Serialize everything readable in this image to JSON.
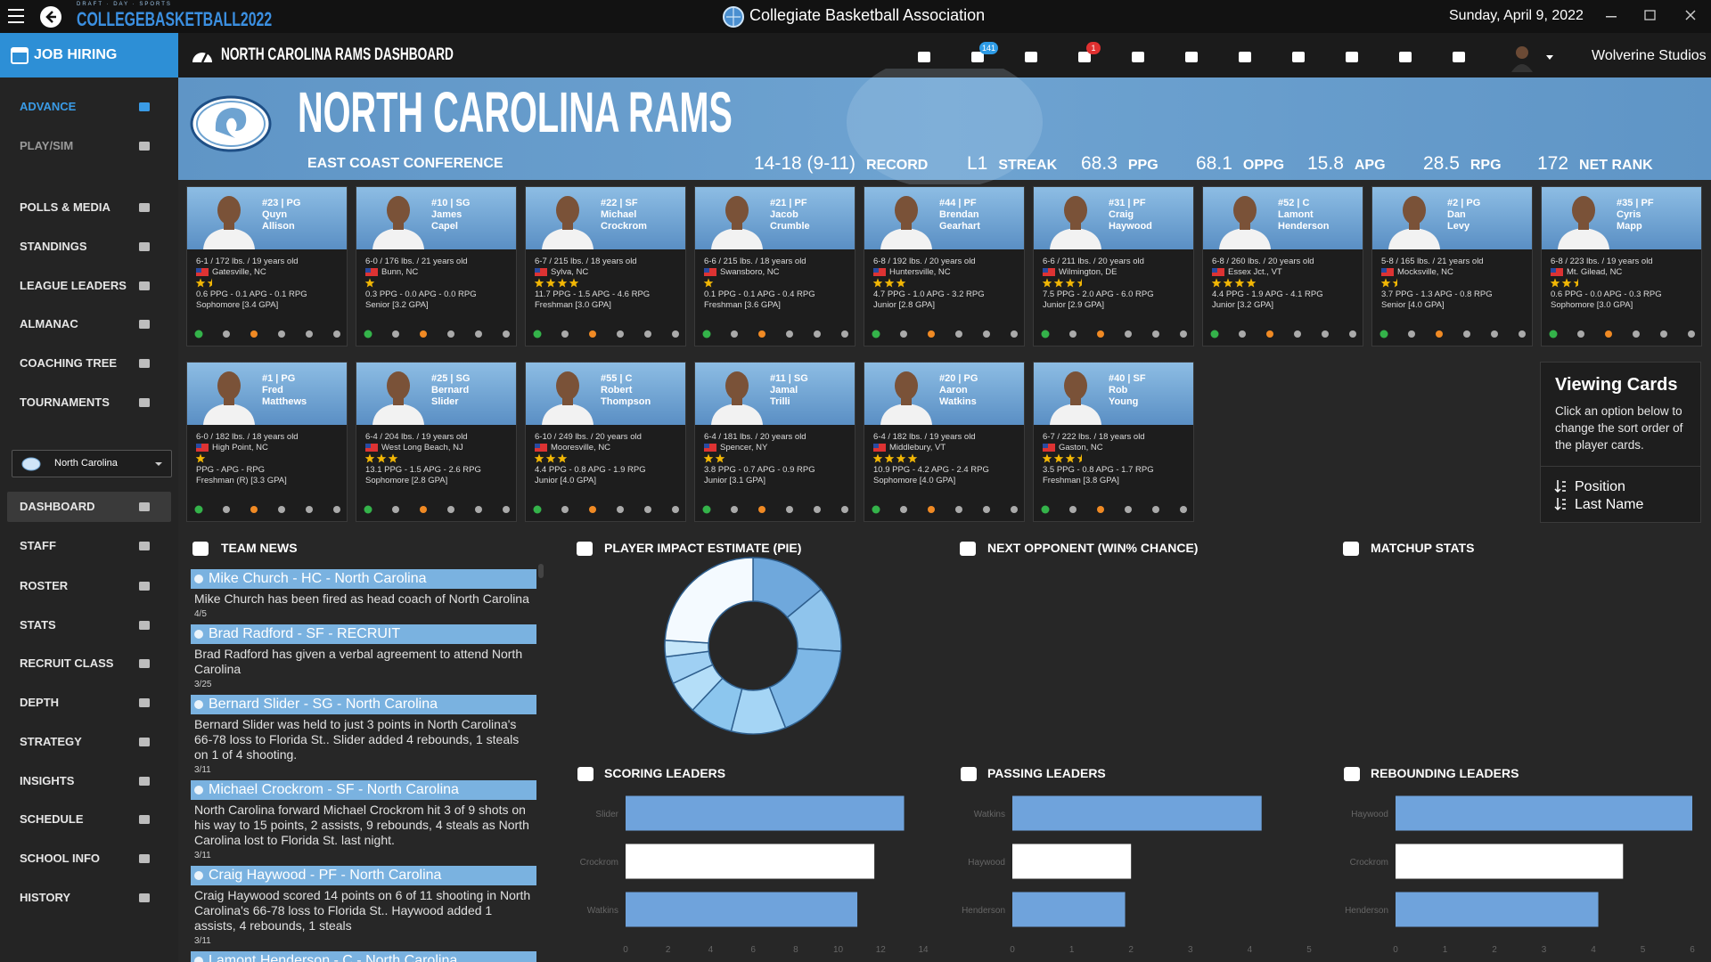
{
  "top_bar": {
    "logo_brand": "DRAFT · DAY · SPORTS",
    "logo_name": "COLLEGEBASKETBALL2022",
    "title": "Collegiate Basketball Association",
    "date": "Sunday, April 9, 2022"
  },
  "nav_bar": {
    "job_hiring": "JOB HIRING",
    "page_title": "NORTH CAROLINA RAMS DASHBOARD",
    "mail_count": 141,
    "notification_count": 1,
    "user": "Wolverine Studios"
  },
  "sidebar": {
    "top_items": [
      "ADVANCE",
      "PLAY/SIM",
      "POLLS & MEDIA",
      "STANDINGS",
      "LEAGUE LEADERS",
      "ALMANAC",
      "COACHING TREE",
      "TOURNAMENTS"
    ],
    "team": "North Carolina",
    "bottom_items": [
      "DASHBOARD",
      "STAFF",
      "ROSTER",
      "STATS",
      "RECRUIT CLASS",
      "DEPTH",
      "STRATEGY",
      "INSIGHTS",
      "SCHEDULE",
      "SCHOOL INFO",
      "HISTORY"
    ]
  },
  "header": {
    "team": "NORTH CAROLINA RAMS",
    "conference": "EAST COAST CONFERENCE",
    "stats": [
      {
        "value": "14-18 (9-11)",
        "label": "RECORD"
      },
      {
        "value": "L1",
        "label": "STREAK"
      },
      {
        "value": "68.3",
        "label": "PPG"
      },
      {
        "value": "68.1",
        "label": "OPPG"
      },
      {
        "value": "15.8",
        "label": "APG"
      },
      {
        "value": "28.5",
        "label": "RPG"
      },
      {
        "value": "172",
        "label": "NET RANK"
      }
    ]
  },
  "players": [
    {
      "number_position": "#23 | PG",
      "first_name": "Quyn",
      "last_name": "Allison",
      "bio": "6-1 / 172 lbs. / 19 years old",
      "hometown": "Gatesville, NC",
      "stars": 1.5,
      "stats": "0.6 PPG - 0.1 APG - 0.1 RPG",
      "class": "Sophomore [3.4 GPA]"
    },
    {
      "number_position": "#10 | SG",
      "first_name": "James",
      "last_name": "Capel",
      "bio": "6-0 / 176 lbs. / 21 years old",
      "hometown": "Bunn, NC",
      "stars": 1,
      "stats": "0.3 PPG - 0.0 APG - 0.0 RPG",
      "class": "Senior [3.2 GPA]"
    },
    {
      "number_position": "#22 | SF",
      "first_name": "Michael",
      "last_name": "Crockrom",
      "bio": "6-7 / 215 lbs. / 18 years old",
      "hometown": "Sylva, NC",
      "stars": 4,
      "stats": "11.7 PPG - 1.5 APG - 4.6 RPG",
      "class": "Freshman [3.0 GPA]"
    },
    {
      "number_position": "#21 | PF",
      "first_name": "Jacob",
      "last_name": "Crumble",
      "bio": "6-6 / 215 lbs. / 18 years old",
      "hometown": "Swansboro, NC",
      "stars": 1,
      "stats": "0.1 PPG - 0.1 APG - 0.4 RPG",
      "class": "Freshman [3.6 GPA]"
    },
    {
      "number_position": "#44 | PF",
      "first_name": "Brendan",
      "last_name": "Gearhart",
      "bio": "6-8 / 192 lbs. / 20 years old",
      "hometown": "Huntersville, NC",
      "stars": 3,
      "stats": "4.7 PPG - 1.0 APG - 3.2 RPG",
      "class": "Junior [2.8 GPA]"
    },
    {
      "number_position": "#31 | PF",
      "first_name": "Craig",
      "last_name": "Haywood",
      "bio": "6-6 / 211 lbs. / 20 years old",
      "hometown": "Wilmington, DE",
      "stars": 3.5,
      "stats": "7.5 PPG - 2.0 APG - 6.0 RPG",
      "class": "Junior [2.9 GPA]"
    },
    {
      "number_position": "#52 | C",
      "first_name": "Lamont",
      "last_name": "Henderson",
      "bio": "6-8 / 260 lbs. / 20 years old",
      "hometown": "Essex Jct., VT",
      "stars": 4,
      "stats": "4.4 PPG - 1.9 APG - 4.1 RPG",
      "class": "Junior [3.2 GPA]"
    },
    {
      "number_position": "#2 | PG",
      "first_name": "Dan",
      "last_name": "Levy",
      "bio": "5-8 / 165 lbs. / 21 years old",
      "hometown": "Mocksville, NC",
      "stars": 1.5,
      "stats": "3.7 PPG - 1.3 APG - 0.8 RPG",
      "class": "Senior [4.0 GPA]"
    },
    {
      "number_position": "#35 | PF",
      "first_name": "Cyris",
      "last_name": "Mapp",
      "bio": "6-8 / 223 lbs. / 19 years old",
      "hometown": "Mt. Gilead, NC",
      "stars": 2.5,
      "stats": "0.6 PPG - 0.0 APG - 0.3 RPG",
      "class": "Sophomore [3.0 GPA]"
    },
    {
      "number_position": "#1 | PG",
      "first_name": "Fred",
      "last_name": "Matthews",
      "bio": "6-0 / 182 lbs. / 18 years old",
      "hometown": "High Point, NC",
      "stars": 1,
      "stats": "PPG - APG - RPG",
      "class": "Freshman (R) [3.3 GPA]"
    },
    {
      "number_position": "#25 | SG",
      "first_name": "Bernard",
      "last_name": "Slider",
      "bio": "6-4 / 204 lbs. / 19 years old",
      "hometown": "West Long Beach, NJ",
      "stars": 3,
      "stats": "13.1 PPG - 1.5 APG - 2.6 RPG",
      "class": "Sophomore [2.8 GPA]"
    },
    {
      "number_position": "#55 | C",
      "first_name": "Robert",
      "last_name": "Thompson",
      "bio": "6-10 / 249 lbs. / 20 years old",
      "hometown": "Mooresville, NC",
      "stars": 3,
      "stats": "4.4 PPG - 0.8 APG - 1.9 RPG",
      "class": "Junior [4.0 GPA]"
    },
    {
      "number_position": "#11 | SG",
      "first_name": "Jamal",
      "last_name": "Trilli",
      "bio": "6-4 / 181 lbs. / 20 years old",
      "hometown": "Spencer, NY",
      "stars": 2,
      "stats": "3.8 PPG - 0.7 APG - 0.9 RPG",
      "class": "Junior [3.1 GPA]"
    },
    {
      "number_position": "#20 | PG",
      "first_name": "Aaron",
      "last_name": "Watkins",
      "bio": "6-4 / 182 lbs. / 19 years old",
      "hometown": "Middlebury, VT",
      "stars": 4,
      "stats": "10.9 PPG - 4.2 APG - 2.4 RPG",
      "class": "Sophomore [4.0 GPA]"
    },
    {
      "number_position": "#40 | SF",
      "first_name": "Rob",
      "last_name": "Young",
      "bio": "6-7 / 222 lbs. / 18 years old",
      "hometown": "Gaston, NC",
      "stars": 3.5,
      "stats": "3.5 PPG - 0.8 APG - 1.7 RPG",
      "class": "Freshman [3.8 GPA]"
    }
  ],
  "viewing_cards": {
    "title": "Viewing Cards",
    "text": "Click an option below to change the sort order of the player cards.",
    "options": [
      "Position",
      "Last Name"
    ]
  },
  "team_news": {
    "title": "TEAM NEWS",
    "items": [
      {
        "headline": "Mike Church - HC - North Carolina",
        "body": "Mike Church has been fired as head coach of North Carolina",
        "date": "4/5"
      },
      {
        "headline": "Brad Radford - SF - RECRUIT",
        "body": "Brad Radford has given a verbal agreement to attend North Carolina",
        "date": "3/25"
      },
      {
        "headline": "Bernard Slider - SG - North Carolina",
        "body": "Bernard Slider was held to just 3 points in North Carolina's 66-78 loss to Florida St.. Slider added 4 rebounds, 1 steals on 1 of 4 shooting.",
        "date": "3/11"
      },
      {
        "headline": "Michael Crockrom - SF - North Carolina",
        "body": "North Carolina forward Michael Crockrom hit 3 of 9 shots on his way to 15 points, 2 assists, 9 rebounds, 4 steals as North Carolina lost to Florida St. last night.",
        "date": "3/11"
      },
      {
        "headline": "Craig Haywood - PF - North Carolina",
        "body": "Craig Haywood scored 14 points on 6 of 11 shooting in North Carolina's 66-78 loss to Florida St.. Haywood added 1 assists, 4 rebounds, 1 steals",
        "date": "3/11"
      },
      {
        "headline": "Lamont Henderson - C - North Carolina"
      }
    ]
  },
  "sections": {
    "next_opponent": "NEXT OPPONENT (WIN% CHANCE)",
    "matchup_stats": "MATCHUP STATS"
  },
  "chart_data": [
    {
      "type": "pie",
      "title": "PLAYER IMPACT ESTIMATE (PIE)",
      "donut": true,
      "values": [
        14,
        12,
        18,
        10,
        8,
        6,
        5,
        3,
        24
      ],
      "colors": [
        "#6fa8dc",
        "#8fc4ec",
        "#7db7e6",
        "#a5d5f5",
        "#8cc6ee",
        "#b4def8",
        "#9fd0f3",
        "#c4e6fa",
        "#f4faff"
      ]
    },
    {
      "type": "bar",
      "orientation": "horizontal",
      "title": "SCORING LEADERS",
      "categories": [
        "Slider",
        "Crockrom",
        "Watkins"
      ],
      "values": [
        13.1,
        11.7,
        10.9
      ],
      "colors": [
        "#6fa3dc",
        "#ffffff",
        "#6fa3dc"
      ],
      "xlim": [
        0,
        14
      ],
      "xticks": [
        0,
        2,
        4,
        6,
        8,
        10,
        12,
        14
      ]
    },
    {
      "type": "bar",
      "orientation": "horizontal",
      "title": "PASSING LEADERS",
      "categories": [
        "Watkins",
        "Haywood",
        "Henderson"
      ],
      "values": [
        4.2,
        2.0,
        1.9
      ],
      "colors": [
        "#6fa3dc",
        "#ffffff",
        "#6fa3dc"
      ],
      "xlim": [
        0,
        5
      ],
      "xticks": [
        0,
        1,
        2,
        3,
        4,
        5
      ]
    },
    {
      "type": "bar",
      "orientation": "horizontal",
      "title": "REBOUNDING LEADERS",
      "categories": [
        "Haywood",
        "Crockrom",
        "Henderson"
      ],
      "values": [
        6.0,
        4.6,
        4.1
      ],
      "colors": [
        "#6fa3dc",
        "#ffffff",
        "#6fa3dc"
      ],
      "xlim": [
        0,
        6
      ],
      "xticks": [
        0,
        1,
        2,
        3,
        4,
        5,
        6
      ]
    }
  ]
}
